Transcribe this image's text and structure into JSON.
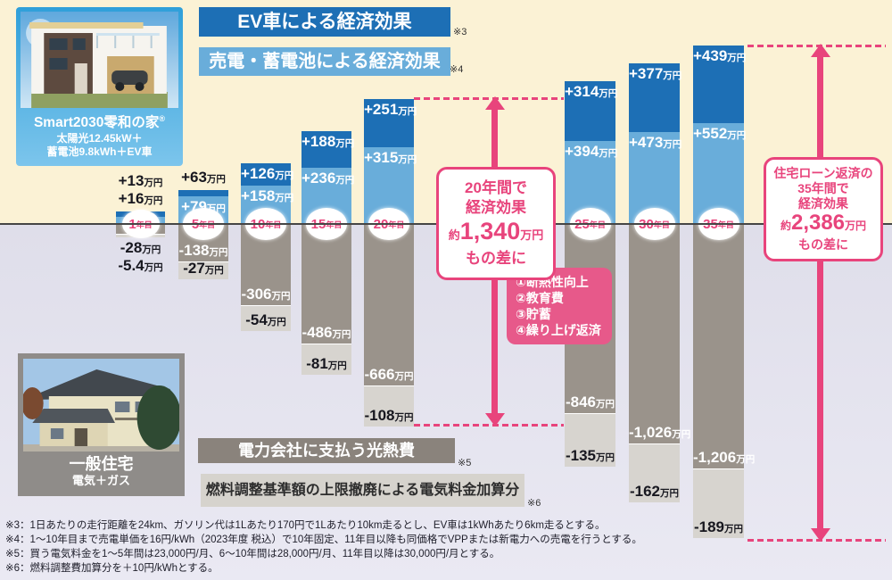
{
  "colors": {
    "ev_blue": "#1d6fb5",
    "sell_blue": "#69adda",
    "utility_gray": "#9a938b",
    "fuel_gray": "#d7d4cf",
    "accent_pink": "#e8447c",
    "benefits_pink": "#e7598a",
    "positive_bg": "#fbf2d5",
    "negative_bg": "#e0dfeb"
  },
  "smart_house_card": {
    "title": "Smart2030零和の家",
    "reg": "®",
    "spec1": "太陽光12.45kW＋",
    "spec2": "蓄電池9.8kWh＋EV車"
  },
  "general_house_card": {
    "title": "一般住宅",
    "subtitle": "電気＋ガス"
  },
  "legend": {
    "ev": {
      "label": "EV車による経済効果",
      "note": "※3"
    },
    "sell": {
      "label": "売電・蓄電池による経済効果",
      "note": "※4"
    },
    "utility": {
      "label": "電力会社に支払う光熱費",
      "note": "※5"
    },
    "fuel": {
      "label": "燃料調整基準額の上限撤廃による電気料金加算分",
      "note": "※6"
    }
  },
  "callout_20y": {
    "line1": "20年間で",
    "line2": "経済効果",
    "prefix": "約",
    "amount": "1,340",
    "unit": "万円",
    "line4": "もの差に"
  },
  "callout_35y": {
    "line1": "住宅ローン返済の",
    "line2": "35年間で",
    "line3": "経済効果",
    "prefix": "約",
    "amount": "2,386",
    "unit": "万円",
    "line5": "もの差に"
  },
  "benefits_box": {
    "items": [
      "①断熱性向上",
      "②教育費",
      "③貯蓄",
      "④繰り上げ返済"
    ]
  },
  "footnotes": [
    "※3：1日あたりの走行距離を24km、ガソリン代は1Lあたり170円で1Lあたり10km走るとし、EV車は1kWhあたり6km走るとする。",
    "※4：1〜10年目まで売電単価を16円/kWh（2023年度 税込）で10年固定、11年目以降も同価格でVPPまたは新電力への売電を行うとする。",
    "※5：買う電気料金を1〜5年間は23,000円/月、6〜10年間は28,000円/月、11年目以降は30,000円/月とする。",
    "※6：燃料調整費加算分を＋10円/kWhとする。"
  ],
  "chart_data": {
    "type": "bar",
    "stacked": true,
    "diverging": true,
    "unit": "万円",
    "categories": [
      "1年目",
      "5年目",
      "10年目",
      "15年目",
      "20年目",
      "25年目",
      "30年目",
      "35年目"
    ],
    "series": [
      {
        "name": "EV車による経済効果",
        "color": "#1d6fb5",
        "values": [
          13,
          63,
          126,
          188,
          251,
          314,
          377,
          439
        ]
      },
      {
        "name": "売電・蓄電池による経済効果",
        "color": "#69adda",
        "values": [
          16,
          79,
          158,
          236,
          315,
          394,
          473,
          552
        ]
      },
      {
        "name": "電力会社に支払う光熱費",
        "color": "#9a938b",
        "values": [
          -28,
          -138,
          -306,
          -486,
          -666,
          -846,
          -1026,
          -1206
        ]
      },
      {
        "name": "燃料調整基準額の上限撤廃による電気料金加算分",
        "color": "#d7d4cf",
        "values": [
          -5.4,
          -27,
          -54,
          -81,
          -108,
          -135,
          -162,
          -189
        ]
      }
    ],
    "annotations": {
      "diff_20y": "20年間で経済効果約1,340万円もの差に",
      "diff_35y": "住宅ローン返済の35年間で経済効果約2,386万円もの差に"
    },
    "layout": {
      "zero_y": 252,
      "columns": [
        {
          "x": 130,
          "w": 55,
          "badge": {
            "w": 42,
            "h": 32
          },
          "cat": {
            "num": "1",
            "suffix": "年目"
          },
          "segs": {
            "ev": {
              "px": 6,
              "label": "+13",
              "pos": "above"
            },
            "sell": {
              "px": 9,
              "label": "+16",
              "pos": "above"
            },
            "util": {
              "px": 10,
              "label": "-28",
              "pos": "below"
            },
            "fuel": {
              "px": 4,
              "label": "-5.4",
              "pos": "below"
            }
          }
        },
        {
          "x": 200,
          "w": 56,
          "cat": {
            "num": "5",
            "suffix": "年目"
          },
          "segs": {
            "ev": {
              "px": 7,
              "label": "+63",
              "pos": "above"
            },
            "sell": {
              "px": 32,
              "label": "+79",
              "pos": "inside-top"
            },
            "util": {
              "px": 41,
              "label": "-138",
              "pos": "inside-bottom"
            },
            "fuel": {
              "px": 20,
              "label": "-27",
              "pos": "inside-bottom"
            }
          }
        },
        {
          "x": 270,
          "w": 56,
          "cat": {
            "num": "10",
            "suffix": "年目"
          },
          "segs": {
            "ev": {
              "px": 25,
              "label": "+126",
              "pos": "inside-top"
            },
            "sell": {
              "px": 44,
              "label": "+158",
              "pos": "inside-top"
            },
            "util": {
              "px": 90,
              "label": "-306",
              "pos": "inside-bottom"
            },
            "fuel": {
              "px": 29,
              "label": "-54",
              "pos": "inside-bottom"
            }
          }
        },
        {
          "x": 338,
          "w": 56,
          "cat": {
            "num": "15",
            "suffix": "年目"
          },
          "segs": {
            "ev": {
              "px": 41,
              "label": "+188",
              "pos": "inside-top"
            },
            "sell": {
              "px": 64,
              "label": "+236",
              "pos": "inside-top"
            },
            "util": {
              "px": 133,
              "label": "-486",
              "pos": "inside-bottom"
            },
            "fuel": {
              "px": 35,
              "label": "-81",
              "pos": "inside-bottom"
            }
          }
        },
        {
          "x": 408,
          "w": 56,
          "cat": {
            "num": "20",
            "suffix": "年目"
          },
          "segs": {
            "ev": {
              "px": 54,
              "label": "+251",
              "pos": "inside-top"
            },
            "sell": {
              "px": 87,
              "label": "+315",
              "pos": "inside-top"
            },
            "util": {
              "px": 180,
              "label": "-666",
              "pos": "inside-bottom"
            },
            "fuel": {
              "px": 46,
              "label": "-108",
              "pos": "inside-bottom"
            }
          }
        },
        {
          "x": 633,
          "w": 57,
          "cat": {
            "num": "25",
            "suffix": "年目"
          },
          "segs": {
            "ev": {
              "px": 67,
              "label": "+314",
              "pos": "inside-top"
            },
            "sell": {
              "px": 94,
              "label": "+394",
              "pos": "inside-top"
            },
            "util": {
              "px": 211,
              "label": "-846",
              "pos": "inside-bottom"
            },
            "fuel": {
              "px": 60,
              "label": "-135",
              "pos": "inside-bottom"
            }
          }
        },
        {
          "x": 705,
          "w": 57,
          "cat": {
            "num": "30",
            "suffix": "年目"
          },
          "segs": {
            "ev": {
              "px": 77,
              "label": "+377",
              "pos": "inside-top"
            },
            "sell": {
              "px": 104,
              "label": "+473",
              "pos": "inside-top"
            },
            "util": {
              "px": 245,
              "label": "-1,026",
              "pos": "inside-bottom"
            },
            "fuel": {
              "px": 66,
              "label": "-162",
              "pos": "inside-bottom"
            }
          }
        },
        {
          "x": 777,
          "w": 57,
          "cat": {
            "num": "35",
            "suffix": "年目"
          },
          "segs": {
            "ev": {
              "px": 87,
              "label": "+439",
              "pos": "inside-top"
            },
            "sell": {
              "px": 114,
              "label": "+552",
              "pos": "inside-top"
            },
            "util": {
              "px": 273,
              "label": "-1,206",
              "pos": "inside-bottom"
            },
            "fuel": {
              "px": 78,
              "label": "-189",
              "pos": "inside-bottom"
            }
          }
        }
      ]
    }
  }
}
